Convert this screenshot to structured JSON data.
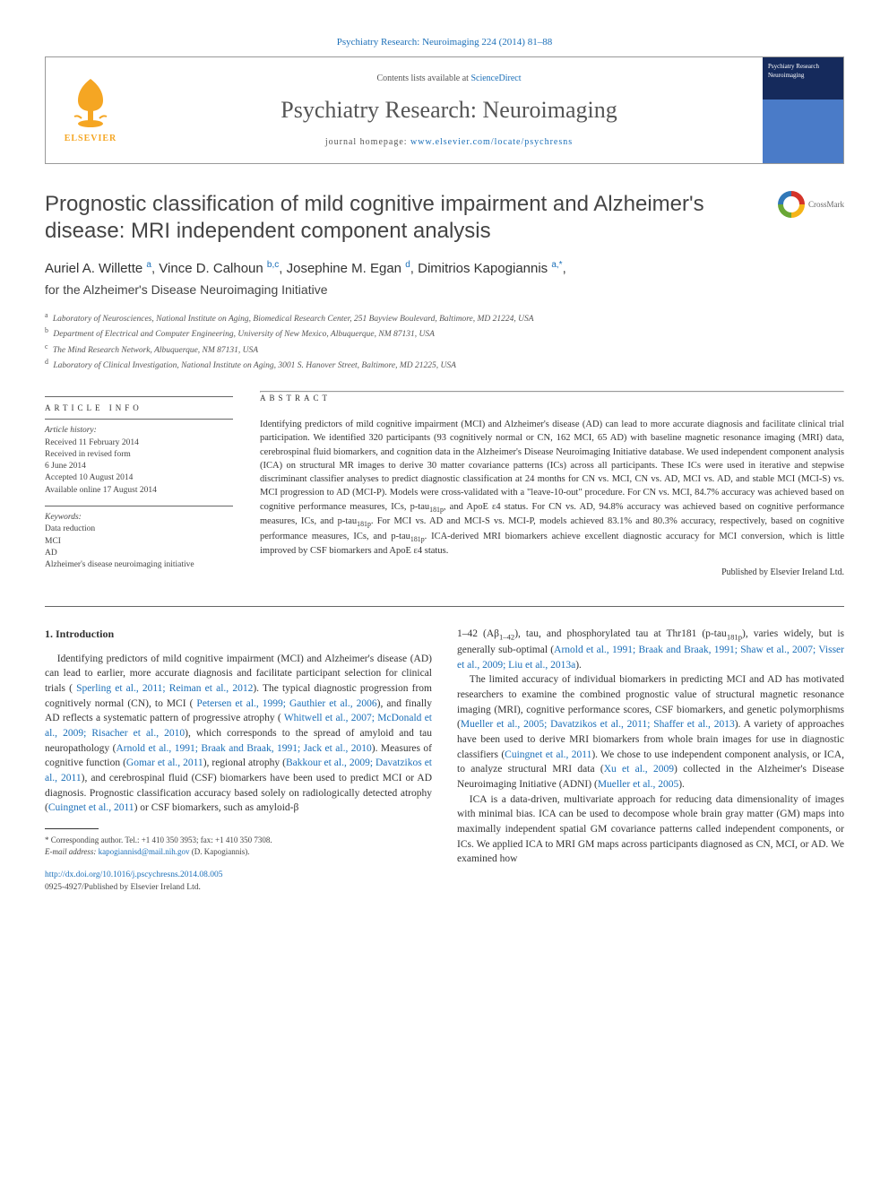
{
  "topLink": "Psychiatry Research: Neuroimaging 224 (2014) 81–88",
  "header": {
    "contentsPrefix": "Contents lists available at ",
    "contentsLink": "ScienceDirect",
    "journalName": "Psychiatry Research: Neuroimaging",
    "homepagePrefix": "journal homepage: ",
    "homepageLink": "www.elsevier.com/locate/psychresns",
    "elsevier": "ELSEVIER",
    "coverTitle": "Psychiatry Research Neuroimaging"
  },
  "article": {
    "title": "Prognostic classification of mild cognitive impairment and Alzheimer's disease: MRI independent component analysis",
    "crossmarkLabel": "CrossMark",
    "authorsHtml": "Auriel A. Willette|a|, Vince D. Calhoun|b,c|, Josephine M. Egan|d|, Dimitrios Kapogiannis|a,*|,",
    "authors": [
      {
        "name": "Auriel A. Willette",
        "aff": "a"
      },
      {
        "name": "Vince D. Calhoun",
        "aff": "b,c"
      },
      {
        "name": "Josephine M. Egan",
        "aff": "d"
      },
      {
        "name": "Dimitrios Kapogiannis",
        "aff": "a,*"
      }
    ],
    "initiative": "for the Alzheimer's Disease Neuroimaging Initiative",
    "affiliations": [
      {
        "key": "a",
        "text": "Laboratory of Neurosciences, National Institute on Aging, Biomedical Research Center, 251 Bayview Boulevard, Baltimore, MD 21224, USA"
      },
      {
        "key": "b",
        "text": "Department of Electrical and Computer Engineering, University of New Mexico, Albuquerque, NM 87131, USA"
      },
      {
        "key": "c",
        "text": "The Mind Research Network, Albuquerque, NM 87131, USA"
      },
      {
        "key": "d",
        "text": "Laboratory of Clinical Investigation, National Institute on Aging, 3001 S. Hanover Street, Baltimore, MD 21225, USA"
      }
    ]
  },
  "info": {
    "heading": "ARTICLE INFO",
    "historyLabel": "Article history:",
    "history": [
      "Received 11 February 2014",
      "Received in revised form",
      "6 June 2014",
      "Accepted 10 August 2014",
      "Available online 17 August 2014"
    ],
    "keywordsLabel": "Keywords:",
    "keywords": [
      "Data reduction",
      "MCI",
      "AD",
      "Alzheimer's disease neuroimaging initiative"
    ]
  },
  "abstract": {
    "heading": "ABSTRACT",
    "text": "Identifying predictors of mild cognitive impairment (MCI) and Alzheimer's disease (AD) can lead to more accurate diagnosis and facilitate clinical trial participation. We identified 320 participants (93 cognitively normal or CN, 162 MCI, 65 AD) with baseline magnetic resonance imaging (MRI) data, cerebrospinal fluid biomarkers, and cognition data in the Alzheimer's Disease Neuroimaging Initiative database. We used independent component analysis (ICA) on structural MR images to derive 30 matter covariance patterns (ICs) across all participants. These ICs were used in iterative and stepwise discriminant classifier analyses to predict diagnostic classification at 24 months for CN vs. MCI, CN vs. AD, MCI vs. AD, and stable MCI (MCI-S) vs. MCI progression to AD (MCI-P). Models were cross-validated with a \"leave-10-out\" procedure. For CN vs. MCI, 84.7% accuracy was achieved based on cognitive performance measures, ICs, p-tau181p, and ApoE ε4 status. For CN vs. AD, 94.8% accuracy was achieved based on cognitive performance measures, ICs, and p-tau181p. For MCI vs. AD and MCI-S vs. MCI-P, models achieved 83.1% and 80.3% accuracy, respectively, based on cognitive performance measures, ICs, and p-tau181p. ICA-derived MRI biomarkers achieve excellent diagnostic accuracy for MCI conversion, which is little improved by CSF biomarkers and ApoE ε4 status.",
    "publisher": "Published by Elsevier Ireland Ltd."
  },
  "body": {
    "introHeading": "1.  Introduction",
    "leftParas": [
      "Identifying predictors of mild cognitive impairment (MCI) and Alzheimer's disease (AD) can lead to earlier, more accurate diagnosis and facilitate participant selection for clinical trials ( Sperling et al., 2011; Reiman et al., 2012). The typical diagnostic progression from cognitively normal (CN), to MCI ( Petersen et al., 1999; Gauthier et al., 2006), and finally AD reflects a systematic pattern of progressive atrophy ( Whitwell et al., 2007; McDonald et al., 2009; Risacher et al., 2010), which corresponds to the spread of amyloid and tau neuropathology (Arnold et al., 1991; Braak and Braak, 1991; Jack et al., 2010). Measures of cognitive function (Gomar et al., 2011), regional atrophy (Bakkour et al., 2009; Davatzikos et al., 2011), and cerebrospinal fluid (CSF) biomarkers have been used to predict MCI or AD diagnosis. Prognostic classification accuracy based solely on radiologically detected atrophy (Cuingnet et al., 2011) or CSF biomarkers, such as amyloid-β"
    ],
    "rightParas": [
      "1–42 (Aβ1–42), tau, and phosphorylated tau at Thr181 (p-tau181p), varies widely, but is generally sub-optimal (Arnold et al., 1991; Braak and Braak, 1991; Shaw et al., 2007; Visser et al., 2009; Liu et al., 2013a).",
      "The limited accuracy of individual biomarkers in predicting MCI and AD has motivated researchers to examine the combined prognostic value of structural magnetic resonance imaging (MRI), cognitive performance scores, CSF biomarkers, and genetic polymorphisms (Mueller et al., 2005; Davatzikos et al., 2011; Shaffer et al., 2013). A variety of approaches have been used to derive MRI biomarkers from whole brain images for use in diagnostic classifiers (Cuingnet et al., 2011). We chose to use independent component analysis, or ICA, to analyze structural MRI data (Xu et al., 2009) collected in the Alzheimer's Disease Neuroimaging Initiative (ADNI) (Mueller et al., 2005).",
      "ICA is a data-driven, multivariate approach for reducing data dimensionality of images with minimal bias. ICA can be used to decompose whole brain gray matter (GM) maps into maximally independent spatial GM covariance patterns called independent components, or ICs. We applied ICA to MRI GM maps across participants diagnosed as CN, MCI, or AD. We examined how"
    ]
  },
  "footnote": {
    "corr": "* Corresponding author. Tel.: +1 410 350 3953; fax: +1 410 350 7308.",
    "emailLabel": "E-mail address: ",
    "email": "kapogiannisd@mail.nih.gov",
    "emailSuffix": " (D. Kapogiannis)."
  },
  "doi": {
    "link": "http://dx.doi.org/10.1016/j.pscychresns.2014.08.005",
    "copyright": "0925-4927/Published by Elsevier Ireland Ltd."
  },
  "colors": {
    "link": "#1b6fb8",
    "text": "#333333",
    "muted": "#555555",
    "orange": "#f5a623",
    "background": "#ffffff"
  },
  "typography": {
    "bodyFont": "Georgia, 'Times New Roman', serif",
    "sansFont": "'Helvetica Neue', Arial, sans-serif",
    "titleSize": 24,
    "journalSize": 26,
    "bodySize": 11.5,
    "abstractSize": 10.5,
    "infoSize": 9.5,
    "footnoteSize": 9
  },
  "layout": {
    "pageWidth": 992,
    "pageHeight": 1323,
    "padding": "40px 50px",
    "columnGap": 28,
    "infoColWidth": 210
  }
}
